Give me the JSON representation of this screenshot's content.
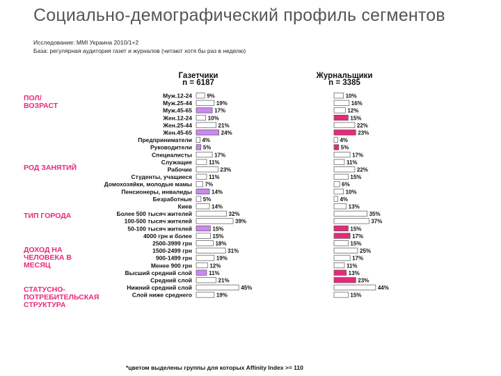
{
  "title": "Социально-демографический профиль сегментов",
  "meta": {
    "study": "Исследование: MMI Украина 2010/1+2",
    "base": "База: регулярная аудитория газет и журналов (читают хотя бы раз в неделю)"
  },
  "groups": [
    {
      "label": "ПОЛ/\nВОЗРАСТ"
    },
    {
      "label": "РОД ЗАНЯТИЙ"
    },
    {
      "label": "ТИП ГОРОДА"
    },
    {
      "label": "ДОХОД НА\nЧЕЛОВЕКА В\nМЕСЯЦ"
    },
    {
      "label": "СТАТУСНО-\nПОТРЕБИТЕЛЬСКАЯ\nСТРУКТУРА"
    }
  ],
  "footnote": "*цветом выделены группы для которых Affinity Index >= 110",
  "colors": {
    "accent": "#e8297a",
    "purple": "#cc88f0",
    "pink": "#e8297a",
    "bar_border": "#555555"
  },
  "chart_data": {
    "type": "bar",
    "title": "Социально-демографический профиль сегментов",
    "value_unit": "%",
    "series": [
      {
        "name": "Газетчики",
        "n": "n = 6187",
        "values": [
          9,
          19,
          17,
          10,
          21,
          24,
          4,
          5,
          17,
          11,
          23,
          11,
          7,
          14,
          5,
          14,
          32,
          39,
          15,
          15,
          18,
          31,
          19,
          12,
          11,
          21,
          45,
          19
        ],
        "highlight": [
          false,
          false,
          true,
          false,
          false,
          true,
          false,
          true,
          false,
          false,
          false,
          false,
          false,
          true,
          false,
          false,
          false,
          false,
          true,
          false,
          false,
          false,
          false,
          false,
          true,
          false,
          false,
          false
        ]
      },
      {
        "name": "Журнальщики",
        "n": "n = 3385",
        "values": [
          10,
          16,
          12,
          15,
          22,
          23,
          4,
          5,
          17,
          11,
          22,
          15,
          6,
          10,
          4,
          13,
          35,
          37,
          15,
          17,
          15,
          25,
          17,
          11,
          13,
          23,
          44,
          15
        ],
        "highlight": [
          false,
          false,
          false,
          true,
          false,
          true,
          false,
          true,
          false,
          false,
          false,
          false,
          false,
          false,
          false,
          false,
          false,
          false,
          true,
          true,
          false,
          false,
          false,
          false,
          true,
          true,
          false,
          false
        ]
      }
    ],
    "categories": [
      "Муж.12-24",
      "Муж.25-44",
      "Муж.45-65",
      "Жен.12-24",
      "Жен.25-44",
      "Жен.45-65",
      "Предприниматели",
      "Руководители",
      "Специалисты",
      "Служащие",
      "Рабочие",
      "Студенты, учащиеся",
      "Домохозяйки, молодые мамы",
      "Пенсионеры, инвалиды",
      "Безработные",
      "Киев",
      "Более 500 тысяч жителей",
      "100-500 тысяч жителей",
      "50-100 тысяч жителей",
      "4000 грн и более",
      "2500-3999 грн",
      "1500-2499 грн",
      "900-1499 грн",
      "Менее 900 грн",
      "Высший средний слой",
      "Средний слой",
      "Нижний средний слой",
      "Слой ниже среднего"
    ]
  }
}
